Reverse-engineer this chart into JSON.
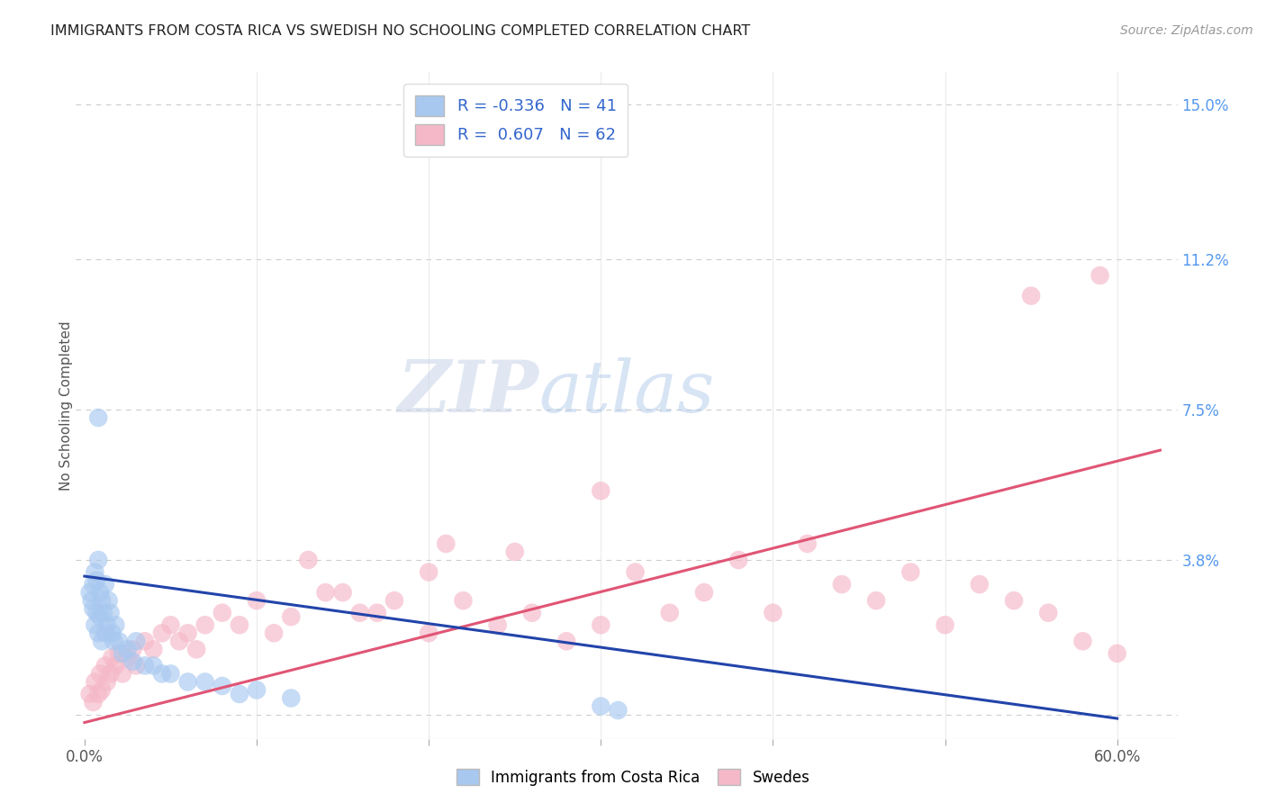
{
  "title": "IMMIGRANTS FROM COSTA RICA VS SWEDISH NO SCHOOLING COMPLETED CORRELATION CHART",
  "source": "Source: ZipAtlas.com",
  "ylabel": "No Schooling Completed",
  "yticks": [
    0.0,
    0.038,
    0.075,
    0.112,
    0.15
  ],
  "ytick_labels": [
    "",
    "3.8%",
    "7.5%",
    "11.2%",
    "15.0%"
  ],
  "xticks": [
    0.0,
    0.1,
    0.2,
    0.3,
    0.4,
    0.5,
    0.6
  ],
  "xlim": [
    -0.005,
    0.635
  ],
  "ylim": [
    -0.006,
    0.158
  ],
  "legend_r1": "R = -0.336",
  "legend_n1": "N = 41",
  "legend_r2": "R =  0.607",
  "legend_n2": "N = 62",
  "color_blue": "#A8C8F0",
  "color_pink": "#F5B8C8",
  "line_color_blue": "#2244AA",
  "line_color_pink": "#E05575",
  "background_color": "#ffffff",
  "blue_line_x": [
    0.0,
    0.6
  ],
  "blue_line_y": [
    0.034,
    -0.001
  ],
  "pink_line_x": [
    0.0,
    0.625
  ],
  "pink_line_y": [
    -0.002,
    0.065
  ],
  "blue_x": [
    0.003,
    0.004,
    0.005,
    0.005,
    0.006,
    0.006,
    0.007,
    0.007,
    0.008,
    0.008,
    0.009,
    0.009,
    0.01,
    0.01,
    0.011,
    0.012,
    0.012,
    0.013,
    0.014,
    0.015,
    0.016,
    0.017,
    0.018,
    0.02,
    0.022,
    0.025,
    0.028,
    0.03,
    0.035,
    0.04,
    0.045,
    0.05,
    0.06,
    0.07,
    0.08,
    0.09,
    0.1,
    0.12,
    0.3,
    0.31,
    0.008
  ],
  "blue_y": [
    0.03,
    0.028,
    0.032,
    0.026,
    0.035,
    0.022,
    0.033,
    0.025,
    0.038,
    0.02,
    0.03,
    0.024,
    0.028,
    0.018,
    0.025,
    0.032,
    0.02,
    0.022,
    0.028,
    0.025,
    0.02,
    0.018,
    0.022,
    0.018,
    0.015,
    0.016,
    0.013,
    0.018,
    0.012,
    0.012,
    0.01,
    0.01,
    0.008,
    0.008,
    0.007,
    0.005,
    0.006,
    0.004,
    0.002,
    0.001,
    0.073
  ],
  "pink_x": [
    0.003,
    0.005,
    0.006,
    0.008,
    0.009,
    0.01,
    0.012,
    0.013,
    0.015,
    0.016,
    0.018,
    0.02,
    0.022,
    0.025,
    0.028,
    0.03,
    0.035,
    0.04,
    0.045,
    0.05,
    0.055,
    0.06,
    0.065,
    0.07,
    0.08,
    0.09,
    0.1,
    0.11,
    0.12,
    0.14,
    0.16,
    0.18,
    0.2,
    0.22,
    0.24,
    0.26,
    0.28,
    0.3,
    0.32,
    0.34,
    0.36,
    0.38,
    0.4,
    0.42,
    0.44,
    0.46,
    0.48,
    0.5,
    0.52,
    0.54,
    0.56,
    0.58,
    0.6,
    0.3,
    0.25,
    0.2,
    0.15,
    0.13,
    0.17,
    0.21,
    0.55,
    0.59
  ],
  "pink_y": [
    0.005,
    0.003,
    0.008,
    0.005,
    0.01,
    0.006,
    0.012,
    0.008,
    0.01,
    0.014,
    0.012,
    0.015,
    0.01,
    0.014,
    0.016,
    0.012,
    0.018,
    0.016,
    0.02,
    0.022,
    0.018,
    0.02,
    0.016,
    0.022,
    0.025,
    0.022,
    0.028,
    0.02,
    0.024,
    0.03,
    0.025,
    0.028,
    0.02,
    0.028,
    0.022,
    0.025,
    0.018,
    0.022,
    0.035,
    0.025,
    0.03,
    0.038,
    0.025,
    0.042,
    0.032,
    0.028,
    0.035,
    0.022,
    0.032,
    0.028,
    0.025,
    0.018,
    0.015,
    0.055,
    0.04,
    0.035,
    0.03,
    0.038,
    0.025,
    0.042,
    0.103,
    0.108
  ]
}
